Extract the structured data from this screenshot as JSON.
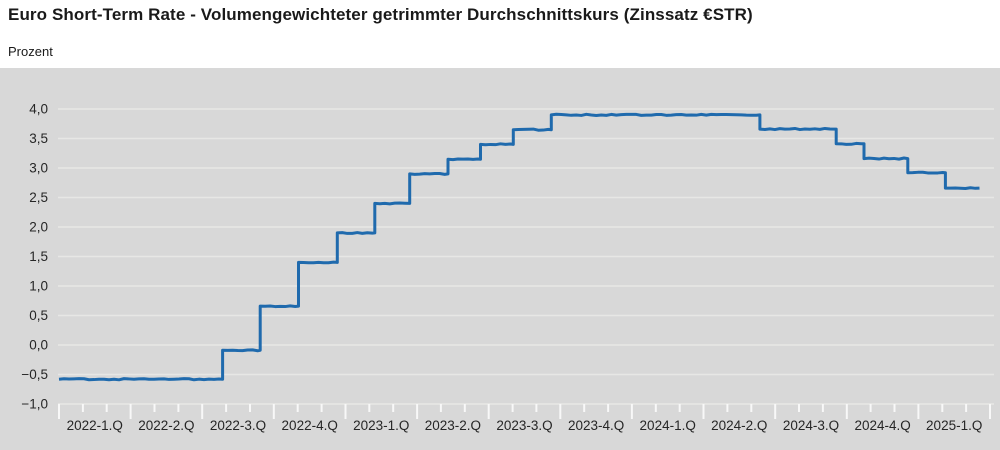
{
  "header": {
    "title": "Euro Short-Term Rate - Volumengewichteter getrimmter Durchschnittskurs (Zinssatz €STR)",
    "unit_label": "Prozent"
  },
  "colors": {
    "page_bg": "#ffffff",
    "panel_bg": "#d8d8d8",
    "gridline": "#e7e7e5",
    "tick": "#f8f8f8",
    "line": "#1f6aad",
    "title_text": "#1a1a1a",
    "axis_text": "#262626"
  },
  "chart_data": {
    "type": "line",
    "line_style": "step-after",
    "title": "Euro Short-Term Rate - Volumengewichteter getrimmter Durchschnittskurs (Zinssatz €STR)",
    "xlabel": "",
    "ylabel": "Prozent",
    "ylim": [
      -1.0,
      4.0
    ],
    "y_tick_step": 0.5,
    "y_tick_values": [
      4.0,
      3.5,
      3.0,
      2.5,
      2.0,
      1.5,
      1.0,
      0.5,
      0.0,
      -0.5,
      -1.0
    ],
    "y_tick_labels": [
      "4,0",
      "3,5",
      "3,0",
      "2,5",
      "2,0",
      "1,5",
      "1,0",
      "0,5",
      "0,0",
      "−0,5",
      "−1,0"
    ],
    "x_range": [
      "2022-01-01",
      "2025-04-01"
    ],
    "x_quarter_labels": [
      "2022-1.Q",
      "2022-2.Q",
      "2022-3.Q",
      "2022-4.Q",
      "2023-1.Q",
      "2023-2.Q",
      "2023-3.Q",
      "2023-4.Q",
      "2024-1.Q",
      "2024-2.Q",
      "2024-3.Q",
      "2024-4.Q",
      "2025-1.Q"
    ],
    "grid": true,
    "legend_position": "none",
    "series": [
      {
        "name": "Zinssatz €STR",
        "points": [
          [
            "2022-01-01",
            -0.58
          ],
          [
            "2022-07-27",
            -0.09
          ],
          [
            "2022-09-14",
            0.66
          ],
          [
            "2022-11-02",
            1.4
          ],
          [
            "2022-12-21",
            1.9
          ],
          [
            "2023-02-08",
            2.4
          ],
          [
            "2023-03-22",
            2.9
          ],
          [
            "2023-05-10",
            3.15
          ],
          [
            "2023-06-21",
            3.4
          ],
          [
            "2023-08-02",
            3.65
          ],
          [
            "2023-09-20",
            3.9
          ],
          [
            "2024-06-12",
            3.66
          ],
          [
            "2024-09-18",
            3.41
          ],
          [
            "2024-10-23",
            3.16
          ],
          [
            "2024-12-18",
            2.92
          ],
          [
            "2025-02-05",
            2.66
          ]
        ],
        "end_point": [
          "2025-03-18",
          2.66
        ]
      }
    ]
  }
}
